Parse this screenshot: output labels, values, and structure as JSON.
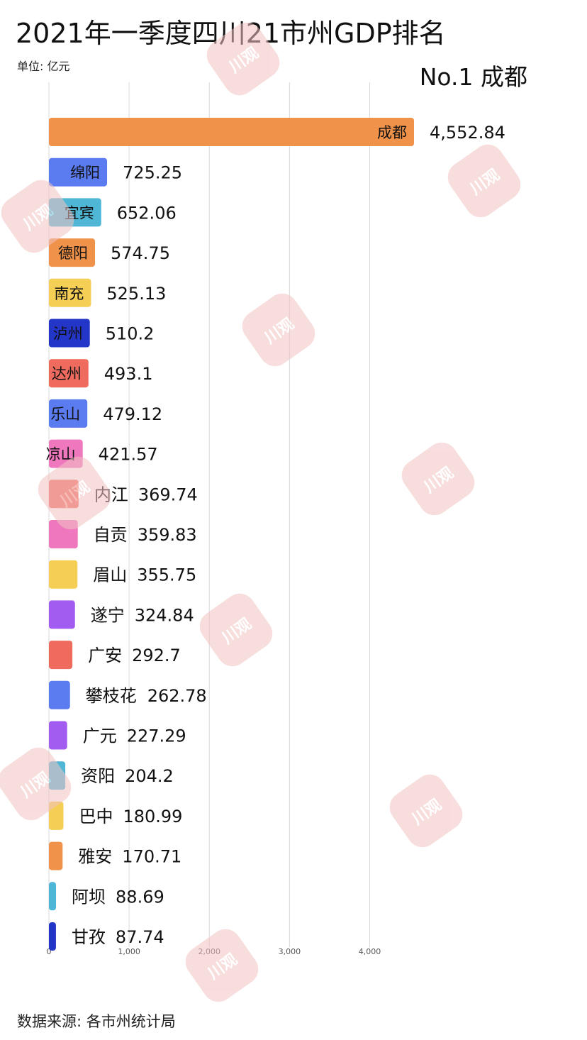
{
  "header": {
    "title": "2021年一季度四川21市州GDP排名",
    "unit": "单位: 亿元",
    "rank_label": "No.1 成都"
  },
  "footer": {
    "source": "数据来源: 各市州统计局"
  },
  "watermark": {
    "text": "川观"
  },
  "chart_data": {
    "type": "bar",
    "orientation": "horizontal",
    "categories": [
      "成都",
      "绵阳",
      "宜宾",
      "德阳",
      "南充",
      "泸州",
      "达州",
      "乐山",
      "凉山",
      "内江",
      "自贡",
      "眉山",
      "遂宁",
      "广安",
      "攀枝花",
      "广元",
      "资阳",
      "巴中",
      "雅安",
      "阿坝",
      "甘孜"
    ],
    "values": [
      4552.84,
      725.25,
      652.06,
      574.75,
      525.13,
      510.2,
      493.1,
      479.12,
      421.57,
      369.74,
      359.83,
      355.75,
      324.84,
      292.7,
      262.78,
      227.29,
      204.2,
      180.99,
      170.71,
      88.69,
      87.74
    ],
    "value_labels": [
      "4,552.84",
      "725.25",
      "652.06",
      "574.75",
      "525.13",
      "510.2",
      "493.1",
      "479.12",
      "421.57",
      "369.74",
      "359.83",
      "355.75",
      "324.84",
      "292.7",
      "262.78",
      "227.29",
      "204.2",
      "180.99",
      "170.71",
      "88.69",
      "87.74"
    ],
    "colors": [
      "#f0924a",
      "#5b7bf0",
      "#4fb6d6",
      "#f0924a",
      "#f5ce55",
      "#2436c8",
      "#ee6b5e",
      "#5b7bf0",
      "#ee77bd",
      "#ee6b5e",
      "#ee77bd",
      "#f5ce55",
      "#a35cf0",
      "#ee6b5e",
      "#5b7bf0",
      "#a35cf0",
      "#4fb6d6",
      "#f5ce55",
      "#f0924a",
      "#4fb6d6",
      "#2436c8"
    ],
    "x_ticks": [
      0,
      1000,
      2000,
      3000,
      4000
    ],
    "x_tick_labels": [
      "0",
      "1,000",
      "2,000",
      "3,000",
      "4,000"
    ],
    "xlim": [
      0,
      4552.84
    ],
    "grid": true
  }
}
